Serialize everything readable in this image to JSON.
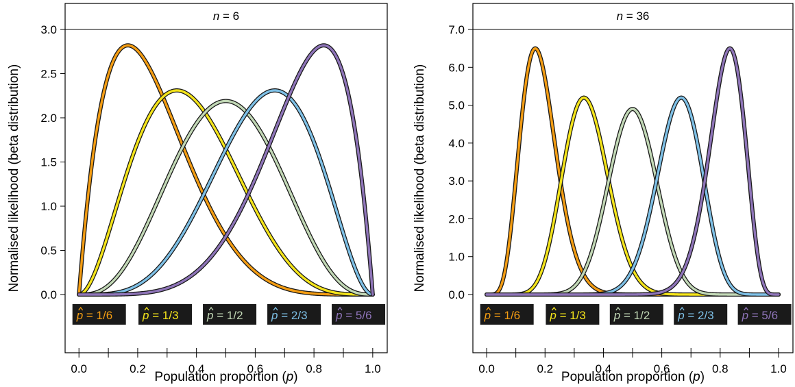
{
  "chart_data": [
    {
      "type": "line",
      "title": "n = 6",
      "title_italic": "n",
      "title_rest": " = 6",
      "n": 6,
      "xlabel_main": "Population proportion (",
      "xlabel_var": "p",
      "xlabel_end": ")",
      "ylabel": "Normalised likelihood (beta distribution)",
      "xlim": [
        0,
        1
      ],
      "ylim": [
        0,
        3.0
      ],
      "xticks": [
        0.0,
        0.2,
        0.4,
        0.6,
        0.8,
        1.0
      ],
      "xtick_labels": [
        "0.0",
        "0.2",
        "0.4",
        "0.6",
        "0.8",
        "1.0"
      ],
      "yticks": [
        0.0,
        0.5,
        1.0,
        1.5,
        2.0,
        2.5,
        3.0
      ],
      "ytick_labels": [
        "0.0",
        "0.5",
        "1.0",
        "1.5",
        "2.0",
        "2.5",
        "3.0"
      ],
      "series": [
        {
          "name": "p̂ = 1/6",
          "hat": "p",
          "rest": " = 1/6",
          "p_hat": 0.1667,
          "color": "#f39c12",
          "peak": 2.82
        },
        {
          "name": "p̂ = 1/3",
          "hat": "p",
          "rest": " = 1/3",
          "p_hat": 0.3333,
          "color": "#f4e41a",
          "peak": 2.31
        },
        {
          "name": "p̂ = 1/2",
          "hat": "p",
          "rest": " = 1/2",
          "p_hat": 0.5,
          "color": "#c2d8b6",
          "peak": 2.19
        },
        {
          "name": "p̂ = 2/3",
          "hat": "p",
          "rest": " = 2/3",
          "p_hat": 0.6667,
          "color": "#7ec0e6",
          "peak": 2.31
        },
        {
          "name": "p̂ = 5/6",
          "hat": "p",
          "rest": " = 5/6",
          "p_hat": 0.8333,
          "color": "#8e74b8",
          "peak": 2.82
        }
      ]
    },
    {
      "type": "line",
      "title": "n = 36",
      "title_italic": "n",
      "title_rest": " = 36",
      "n": 36,
      "xlabel_main": "Population proportion (",
      "xlabel_var": "p",
      "xlabel_end": ")",
      "ylabel": "Normalised likelihood (beta distribution)",
      "xlim": [
        0,
        1
      ],
      "ylim": [
        0,
        7.0
      ],
      "xticks": [
        0.0,
        0.2,
        0.4,
        0.6,
        0.8,
        1.0
      ],
      "xtick_labels": [
        "0.0",
        "0.2",
        "0.4",
        "0.6",
        "0.8",
        "1.0"
      ],
      "yticks": [
        0.0,
        1.0,
        2.0,
        3.0,
        4.0,
        5.0,
        6.0,
        7.0
      ],
      "ytick_labels": [
        "0.0",
        "1.0",
        "2.0",
        "3.0",
        "4.0",
        "5.0",
        "6.0",
        "7.0"
      ],
      "series": [
        {
          "name": "p̂ = 1/6",
          "hat": "p",
          "rest": " = 1/6",
          "p_hat": 0.1667,
          "color": "#f39c12",
          "peak": 6.5
        },
        {
          "name": "p̂ = 1/3",
          "hat": "p",
          "rest": " = 1/3",
          "p_hat": 0.3333,
          "color": "#f4e41a",
          "peak": 5.2
        },
        {
          "name": "p̂ = 1/2",
          "hat": "p",
          "rest": " = 1/2",
          "p_hat": 0.5,
          "color": "#c2d8b6",
          "peak": 4.9
        },
        {
          "name": "p̂ = 2/3",
          "hat": "p",
          "rest": " = 2/3",
          "p_hat": 0.6667,
          "color": "#7ec0e6",
          "peak": 5.2
        },
        {
          "name": "p̂ = 5/6",
          "hat": "p",
          "rest": " = 5/6",
          "p_hat": 0.8333,
          "color": "#8e74b8",
          "peak": 6.5
        }
      ]
    }
  ],
  "colors": {
    "legend_box_background": "#1a1a1a",
    "outline": "#1a1a1a"
  }
}
